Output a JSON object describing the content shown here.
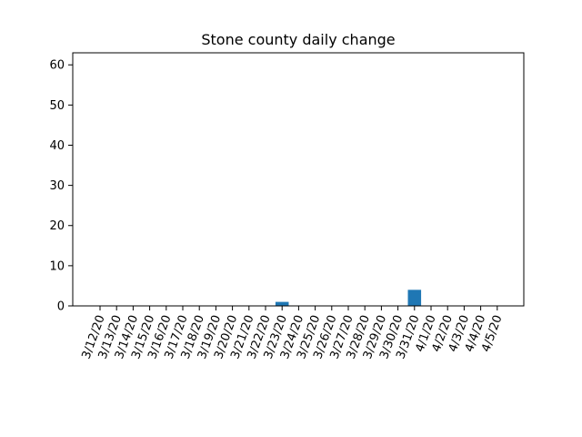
{
  "chart_data": {
    "type": "bar",
    "title": "Stone county daily change",
    "xlabel": "",
    "ylabel": "",
    "categories": [
      "3/12/20",
      "3/13/20",
      "3/14/20",
      "3/15/20",
      "3/16/20",
      "3/17/20",
      "3/18/20",
      "3/19/20",
      "3/20/20",
      "3/21/20",
      "3/22/20",
      "3/23/20",
      "3/24/20",
      "3/25/20",
      "3/26/20",
      "3/27/20",
      "3/28/20",
      "3/29/20",
      "3/30/20",
      "3/31/20",
      "4/1/20",
      "4/2/20",
      "4/3/20",
      "4/4/20",
      "4/5/20"
    ],
    "values": [
      0,
      0,
      0,
      0,
      0,
      0,
      0,
      0,
      0,
      0,
      0,
      1,
      0,
      0,
      0,
      0,
      0,
      0,
      0,
      4,
      0,
      0,
      0,
      0,
      0
    ],
    "ylim": [
      0,
      63
    ],
    "yticks": [
      0,
      10,
      20,
      30,
      40,
      50,
      60
    ],
    "grid": false,
    "legend": "none",
    "bar_color": "#1f77b4"
  }
}
